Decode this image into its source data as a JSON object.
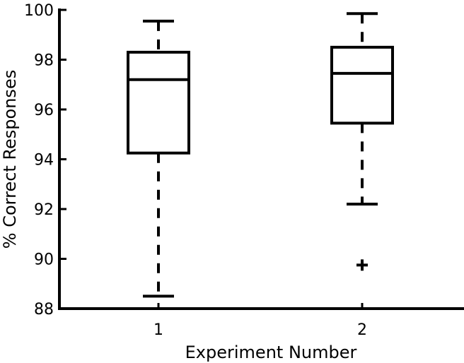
{
  "chart_data": {
    "type": "box",
    "title": "",
    "xlabel": "Experiment Number",
    "ylabel": "% Correct Responses",
    "ylim": [
      88,
      100
    ],
    "yticks": [
      88,
      90,
      92,
      94,
      96,
      98,
      100
    ],
    "categories": [
      "1",
      "2"
    ],
    "boxes": [
      {
        "category": "1",
        "whisker_low": 88.5,
        "q1": 94.25,
        "median": 97.2,
        "q3": 98.3,
        "whisker_high": 99.55,
        "outliers": []
      },
      {
        "category": "2",
        "whisker_low": 92.2,
        "q1": 95.45,
        "median": 97.45,
        "q3": 98.5,
        "whisker_high": 99.85,
        "outliers": [
          89.75
        ]
      }
    ],
    "grid": false,
    "colors": {
      "box": "#000000",
      "axis": "#000000",
      "background": "#ffffff"
    }
  }
}
